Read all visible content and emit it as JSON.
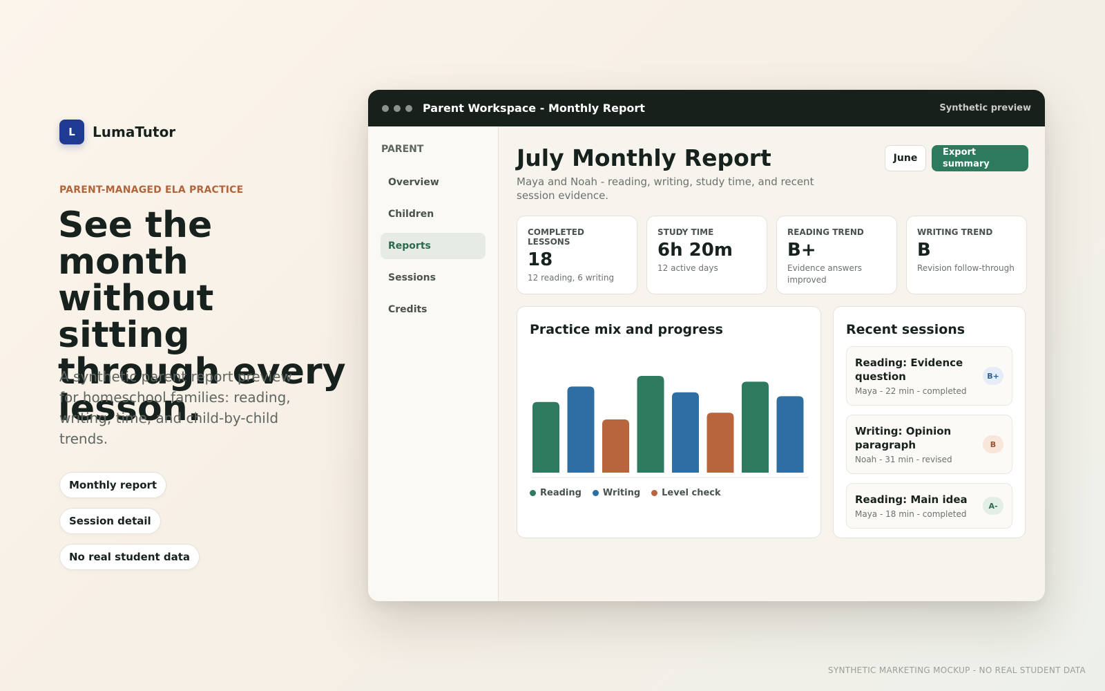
{
  "brand": {
    "logo_letter": "L",
    "name": "LumaTutor"
  },
  "hero": {
    "eyebrow": "PARENT-MANAGED ELA PRACTICE",
    "title": "See the month without sitting through every lesson.",
    "subtitle": "A synthetic parent report preview for homeschool families: reading, writing, time, and child-by-child trends.",
    "pills": [
      "Monthly report",
      "Session detail",
      "No real student data"
    ]
  },
  "footer_note": "SYNTHETIC MARKETING MOCKUP - NO REAL STUDENT DATA",
  "window": {
    "title": "Parent Workspace - Monthly Report",
    "badge": "Synthetic preview"
  },
  "sidebar": {
    "heading": "PARENT",
    "items": [
      {
        "label": "Overview",
        "active": false
      },
      {
        "label": "Children",
        "active": false
      },
      {
        "label": "Reports",
        "active": true
      },
      {
        "label": "Sessions",
        "active": false
      },
      {
        "label": "Credits",
        "active": false
      }
    ]
  },
  "report": {
    "title": "July Monthly Report",
    "subtitle": "Maya and Noah - reading, writing, study time, and recent session evidence.",
    "month_button": "June",
    "export_button": "Export summary"
  },
  "kpis": [
    {
      "label": "COMPLETED LESSONS",
      "value": "18",
      "note": "12 reading, 6 writing"
    },
    {
      "label": "STUDY TIME",
      "value": "6h 20m",
      "note": "12 active days"
    },
    {
      "label": "READING TREND",
      "value": "B+",
      "note": "Evidence answers improved"
    },
    {
      "label": "WRITING TREND",
      "value": "B",
      "note": "Revision follow-through"
    }
  ],
  "chart_card": {
    "title": "Practice mix and progress"
  },
  "chart_data": {
    "type": "bar",
    "title": "Practice mix and progress",
    "xlabel": "",
    "ylabel": "",
    "ylim": [
      0,
      100
    ],
    "grid": false,
    "legend_position": "bottom-left",
    "series_colors": {
      "Reading": "#2e7a5e",
      "Writing": "#2f6ea3",
      "Level check": "#b8643d"
    },
    "bars": [
      {
        "series": "Reading",
        "value": 73
      },
      {
        "series": "Writing",
        "value": 89
      },
      {
        "series": "Level check",
        "value": 55
      },
      {
        "series": "Reading",
        "value": 100
      },
      {
        "series": "Writing",
        "value": 83
      },
      {
        "series": "Level check",
        "value": 62
      },
      {
        "series": "Reading",
        "value": 94
      },
      {
        "series": "Writing",
        "value": 79
      }
    ],
    "legend": [
      "Reading",
      "Writing",
      "Level check"
    ]
  },
  "sessions": {
    "title": "Recent sessions",
    "items": [
      {
        "title": "Reading: Evidence question",
        "meta": "Maya - 22 min - completed",
        "grade": "B+",
        "grade_bg": "#e5eef8",
        "grade_color": "#2f5f8f"
      },
      {
        "title": "Writing: Opinion paragraph",
        "meta": "Noah - 31 min - revised",
        "grade": "B",
        "grade_bg": "#f8e6db",
        "grade_color": "#a0522d"
      },
      {
        "title": "Reading: Main idea",
        "meta": "Maya - 18 min - completed",
        "grade": "A-",
        "grade_bg": "#e3eee7",
        "grade_color": "#2e6a4f"
      }
    ]
  }
}
